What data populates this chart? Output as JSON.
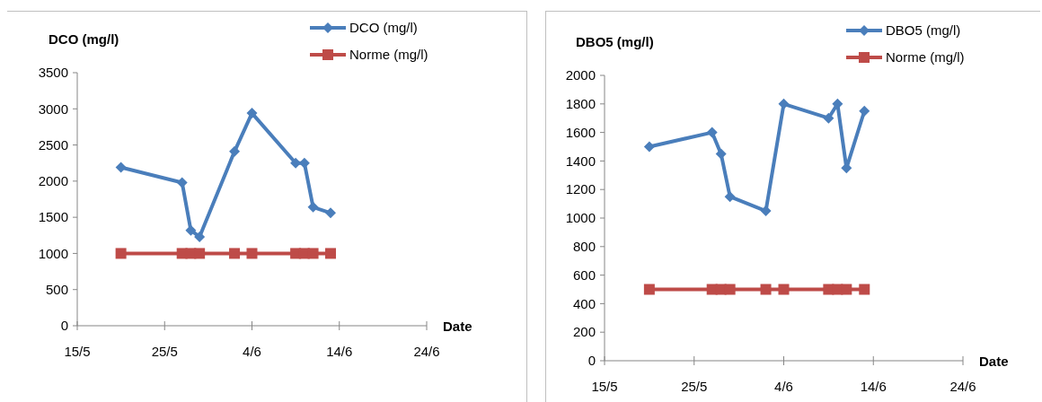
{
  "chart_data": [
    {
      "type": "line",
      "ylabel": "DCO (mg/l)",
      "xlabel": "Date",
      "legend": "top right",
      "grid": false,
      "x": [
        "--05-20",
        "--05-27",
        "--05-28",
        "--05-29",
        "--06-02",
        "--06-04",
        "--06-09",
        "--06-10",
        "--06-11",
        "--06-13"
      ],
      "xlim": [
        "--05-15",
        "--06-24"
      ],
      "xticks": [
        {
          "value": "--05-15",
          "label": "15/5"
        },
        {
          "value": "--05-25",
          "label": "25/5"
        },
        {
          "value": "--06-04",
          "label": "4/6"
        },
        {
          "value": "--06-14",
          "label": "14/6"
        },
        {
          "value": "--06-24",
          "label": "24/6"
        }
      ],
      "ylim": [
        0,
        3500
      ],
      "yticks": [
        0,
        500,
        1000,
        1500,
        2000,
        2500,
        3000,
        3500
      ],
      "series": [
        {
          "name": "DCO (mg/l)",
          "color": "#4a7ebb",
          "marker": "diamond",
          "values": [
            2190,
            1980,
            1320,
            1230,
            2410,
            2940,
            2250,
            2250,
            1640,
            1560
          ]
        },
        {
          "name": "Norme (mg/l)",
          "color": "#be4b48",
          "marker": "square",
          "values": [
            1000,
            1000,
            1000,
            1000,
            1000,
            1000,
            1000,
            1000,
            1000,
            1000
          ]
        }
      ]
    },
    {
      "type": "line",
      "ylabel": "DBO5  (mg/l)",
      "xlabel": "Date",
      "legend": "top right",
      "grid": false,
      "x": [
        "--05-20",
        "--05-27",
        "--05-28",
        "--05-29",
        "--06-02",
        "--06-04",
        "--06-09",
        "--06-10",
        "--06-11",
        "--06-13"
      ],
      "xlim": [
        "--05-15",
        "--06-24"
      ],
      "xticks": [
        {
          "value": "--05-15",
          "label": "15/5"
        },
        {
          "value": "--05-25",
          "label": "25/5"
        },
        {
          "value": "--06-04",
          "label": "4/6"
        },
        {
          "value": "--06-14",
          "label": "14/6"
        },
        {
          "value": "--06-24",
          "label": "24/6"
        }
      ],
      "ylim": [
        0,
        2000
      ],
      "yticks": [
        0,
        200,
        400,
        600,
        800,
        1000,
        1200,
        1400,
        1600,
        1800,
        2000
      ],
      "series": [
        {
          "name": "DBO5 (mg/l)",
          "color": "#4a7ebb",
          "marker": "diamond",
          "values": [
            1500,
            1600,
            1450,
            1150,
            1050,
            1800,
            1700,
            1800,
            1350,
            1750
          ]
        },
        {
          "name": "Norme (mg/l)",
          "color": "#be4b48",
          "marker": "square",
          "values": [
            500,
            500,
            500,
            500,
            500,
            500,
            500,
            500,
            500,
            500
          ]
        }
      ]
    }
  ]
}
